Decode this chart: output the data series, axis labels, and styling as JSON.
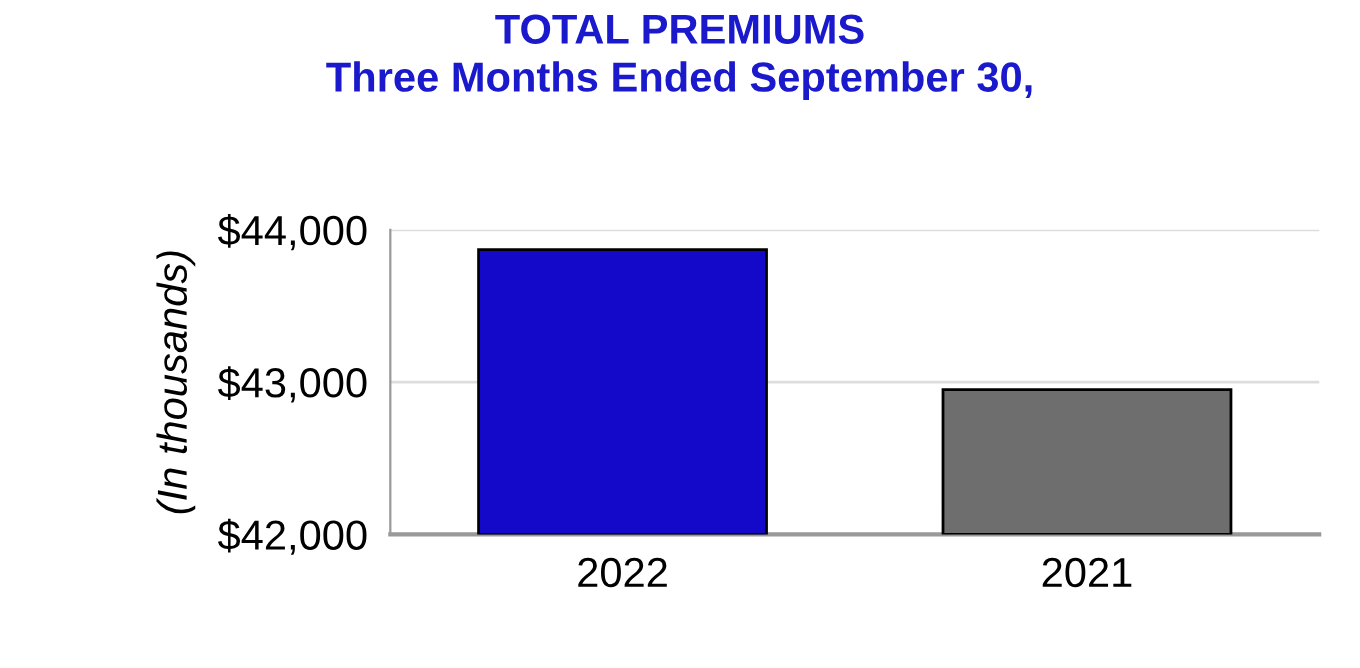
{
  "chart_data": {
    "type": "bar",
    "title": "TOTAL PREMIUMS\nThree Months Ended September 30,",
    "ylabel": "(In thousands)",
    "categories": [
      "2022",
      "2021"
    ],
    "values": [
      43870,
      42950
    ],
    "colors": [
      "#1409c8",
      "#6e6e6e"
    ],
    "ylim": [
      42000,
      44000
    ],
    "yticks": [
      {
        "value": 42000,
        "label": "$42,000"
      },
      {
        "value": 43000,
        "label": "$43,000"
      },
      {
        "value": 44000,
        "label": "$44,000"
      }
    ],
    "grid": "y"
  }
}
